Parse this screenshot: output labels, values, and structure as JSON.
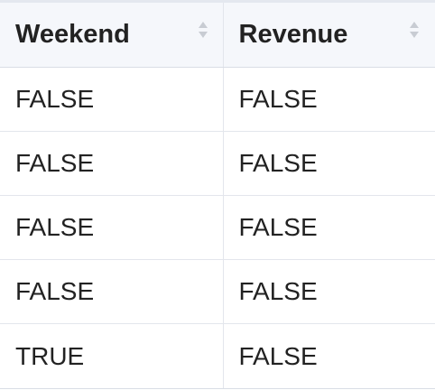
{
  "table": {
    "columns": [
      {
        "label": "Weekend",
        "sort_icon": "sort-icon"
      },
      {
        "label": "Revenue",
        "sort_icon": "sort-icon"
      }
    ],
    "rows": [
      [
        "FALSE",
        "FALSE"
      ],
      [
        "FALSE",
        "FALSE"
      ],
      [
        "FALSE",
        "FALSE"
      ],
      [
        "FALSE",
        "FALSE"
      ],
      [
        "TRUE",
        "FALSE"
      ]
    ],
    "colors": {
      "header_bg": "#f5f7fb",
      "border": "#e3e6ec",
      "text": "#222222",
      "sort_icon": "#c8ccd3"
    }
  }
}
